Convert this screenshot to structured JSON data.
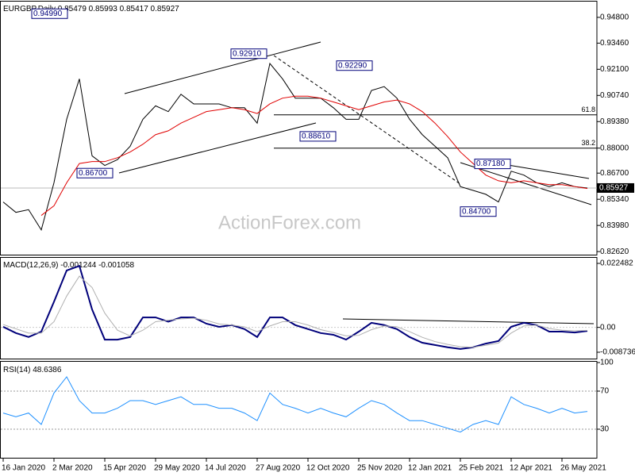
{
  "chart_data": [
    {
      "type": "line",
      "title": "EURGBP,Daily",
      "ohlc": [
        0.85479,
        0.85993,
        0.85417,
        0.85927
      ],
      "watermark": "ActionForex.com",
      "categories": [
        "16 Jan 2020",
        null,
        null,
        null,
        "2 Mar 2020",
        null,
        null,
        null,
        "15 Apr 2020",
        null,
        null,
        null,
        "29 May 2020",
        null,
        null,
        null,
        "14 Jul 2020",
        null,
        null,
        null,
        "27 Aug 2020",
        null,
        null,
        null,
        "12 Oct 2020",
        null,
        null,
        null,
        "25 Nov 2020",
        null,
        null,
        null,
        "12 Jan 2021",
        null,
        null,
        null,
        "25 Feb 2021",
        null,
        null,
        null,
        "12 Apr 2021",
        null,
        null,
        null,
        "26 May 2021",
        null,
        null
      ],
      "series": [
        {
          "color": "#000000",
          "values": [
            0.852,
            0.8466,
            0.848,
            0.8375,
            0.862,
            0.895,
            0.916,
            0.876,
            0.871,
            0.874,
            0.881,
            0.895,
            0.902,
            0.899,
            0.908,
            0.903,
            0.903,
            0.903,
            0.901,
            0.901,
            0.893,
            0.924,
            0.916,
            0.906,
            0.906,
            0.906,
            0.901,
            0.895,
            0.895,
            0.91,
            0.912,
            0.906,
            0.895,
            0.887,
            0.881,
            0.875,
            0.86,
            0.858,
            0.856,
            0.852,
            0.868,
            0.866,
            0.862,
            0.86,
            0.862,
            0.86,
            0.85927
          ]
        },
        {
          "color": "#e00000",
          "values": [
            null,
            null,
            null,
            0.845,
            0.85,
            0.862,
            0.872,
            0.873,
            0.873,
            0.875,
            0.878,
            0.882,
            0.887,
            0.889,
            0.893,
            0.896,
            0.899,
            0.9,
            0.901,
            0.9,
            0.898,
            0.903,
            0.906,
            0.907,
            0.907,
            0.906,
            0.904,
            0.902,
            0.9,
            0.902,
            0.904,
            0.905,
            0.903,
            0.899,
            0.893,
            0.886,
            0.878,
            0.872,
            0.866,
            0.863,
            0.862,
            0.863,
            0.862,
            0.861,
            0.861,
            0.86,
            0.859
          ]
        }
      ],
      "ylim": [
        0.8246,
        0.9562
      ],
      "yticks": [
        {
          "value": 0.948,
          "label": "0.94800"
        },
        {
          "value": 0.9346,
          "label": "0.93460"
        },
        {
          "value": 0.921,
          "label": "0.92100"
        },
        {
          "value": 0.9074,
          "label": "0.90740"
        },
        {
          "value": 0.8938,
          "label": "0.89380"
        },
        {
          "value": 0.88,
          "label": "0.88000"
        },
        {
          "value": 0.867,
          "label": "0.86700"
        },
        {
          "value": 0.8534,
          "label": "0.85340"
        },
        {
          "value": 0.8398,
          "label": "0.83980"
        },
        {
          "value": 0.8262,
          "label": "0.82620"
        }
      ],
      "last_price": 0.85927,
      "annotations": [
        {
          "value": 0.9499,
          "label": "0.94990"
        },
        {
          "value": 0.9291,
          "label": "0.92910"
        },
        {
          "value": 0.9229,
          "label": "0.92290"
        },
        {
          "value": 0.8861,
          "label": "0.88610"
        },
        {
          "value": 0.867,
          "label": "0.86700"
        },
        {
          "value": 0.8718,
          "label": "0.87180"
        },
        {
          "value": 0.847,
          "label": "0.84700"
        }
      ],
      "fib_levels": [
        {
          "value": 0.8973,
          "label": "61.8"
        },
        {
          "value": 0.88,
          "label": "38.2"
        }
      ]
    },
    {
      "type": "line",
      "title": "MACD(12,26,9)",
      "series": [
        {
          "color": "#00007a",
          "values": [
            0.0002,
            -0.002,
            -0.0034,
            -0.0015,
            0.009,
            0.02,
            0.0216,
            0.0063,
            -0.0043,
            -0.0043,
            -0.0034,
            0.0035,
            0.0035,
            0.002,
            0.0035,
            0.0035,
            0.0013,
            0.0002,
            0.0008,
            -0.0006,
            -0.0034,
            0.0035,
            0.0035,
            0.0008,
            -0.0006,
            -0.002,
            -0.0026,
            -0.0043,
            -0.0015,
            0.0016,
            0.0008,
            -0.0006,
            -0.0034,
            -0.0054,
            -0.0062,
            -0.007,
            -0.0076,
            -0.007,
            -0.0057,
            -0.0048,
            0.0002,
            0.0016,
            0.0008,
            -0.0015,
            -0.0015,
            -0.0018,
            -0.001244
          ]
        },
        {
          "color": "#b0b0b0",
          "values": [
            0.001,
            -0.0005,
            -0.002,
            -0.002,
            0.002,
            0.011,
            0.018,
            0.014,
            0.005,
            -0.001,
            -0.003,
            -0.001,
            0.002,
            0.0025,
            0.003,
            0.0032,
            0.0025,
            0.0012,
            0.0008,
            0.0002,
            -0.0015,
            0.0005,
            0.002,
            0.002,
            0.0008,
            -0.0008,
            -0.0018,
            -0.003,
            -0.0028,
            -0.0008,
            0.0005,
            0.0002,
            -0.0015,
            -0.0035,
            -0.005,
            -0.006,
            -0.0068,
            -0.007,
            -0.0063,
            -0.0055,
            -0.002,
            0.0005,
            0.0008,
            -0.0004,
            -0.001,
            -0.0012,
            -0.001058
          ]
        }
      ],
      "ylim": [
        -0.01097,
        0.02443
      ],
      "yticks": [
        0.022482,
        {
          "value": 0,
          "label": "0.00"
        },
        -0.008736
      ]
    },
    {
      "type": "line",
      "title": "RSI(14)",
      "series": [
        {
          "color": "#1e90ff",
          "values": [
            47,
            43,
            47,
            35,
            68,
            85,
            60,
            47,
            47,
            52,
            60,
            60,
            56,
            60,
            64,
            56,
            56,
            52,
            52,
            47,
            39,
            68,
            56,
            52,
            47,
            52,
            47,
            43,
            52,
            60,
            56,
            47,
            39,
            39,
            35,
            31,
            27,
            35,
            39,
            35,
            64,
            56,
            52,
            47,
            52,
            47,
            48.6386
          ]
        }
      ],
      "ylim": [
        0,
        100
      ],
      "yticks": [
        100,
        70,
        30
      ]
    }
  ]
}
